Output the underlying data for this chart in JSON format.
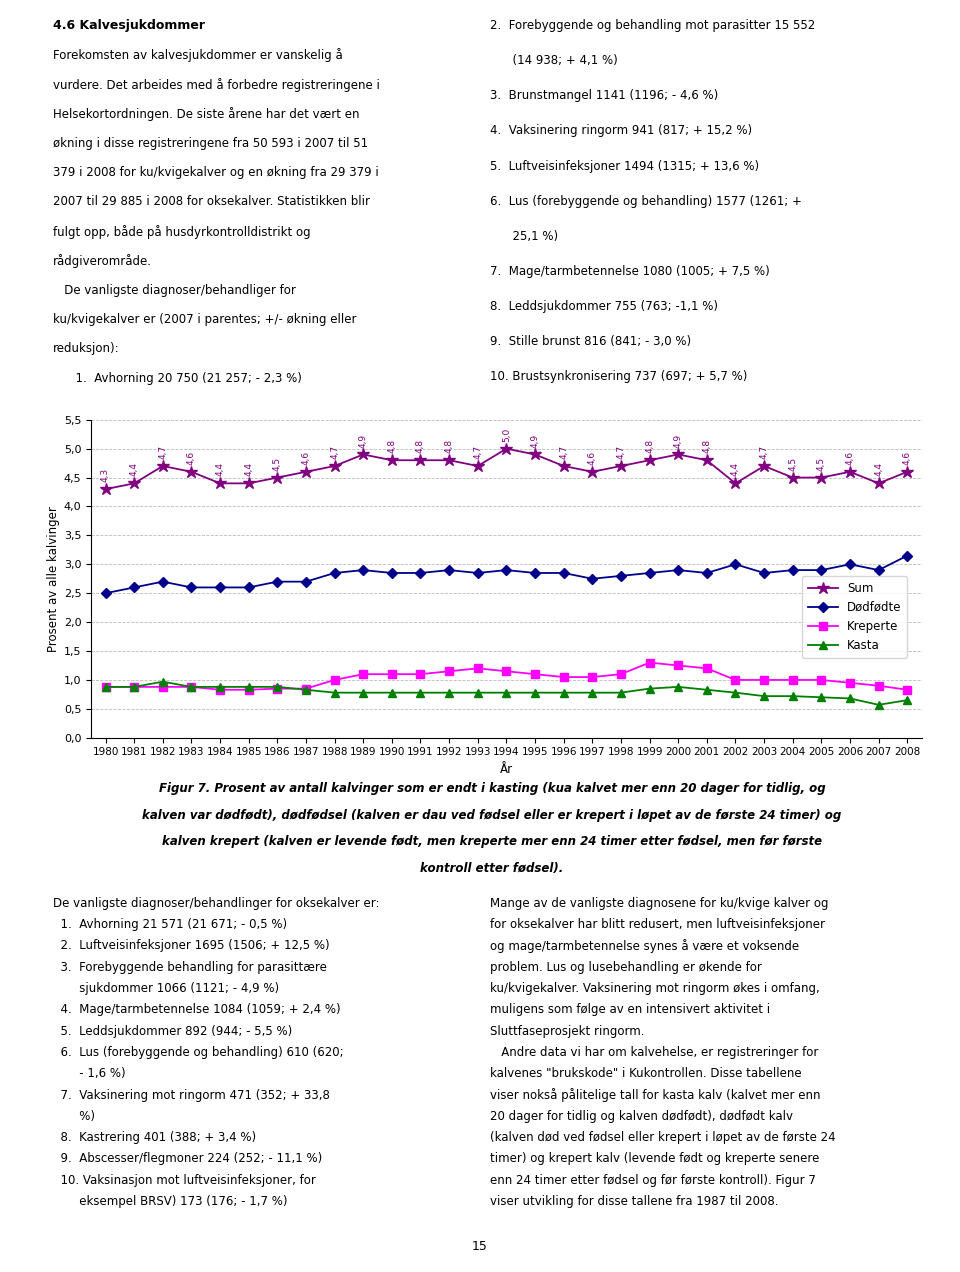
{
  "years": [
    1980,
    1981,
    1982,
    1983,
    1984,
    1985,
    1986,
    1987,
    1988,
    1989,
    1990,
    1991,
    1992,
    1993,
    1994,
    1995,
    1996,
    1997,
    1998,
    1999,
    2000,
    2001,
    2002,
    2003,
    2004,
    2005,
    2006,
    2007,
    2008
  ],
  "sum": [
    4.3,
    4.4,
    4.7,
    4.6,
    4.4,
    4.4,
    4.5,
    4.6,
    4.7,
    4.9,
    4.8,
    4.8,
    4.8,
    4.7,
    5.0,
    4.9,
    4.7,
    4.6,
    4.7,
    4.8,
    4.9,
    4.8,
    4.4,
    4.7,
    4.5,
    4.5,
    4.6,
    4.4,
    4.6
  ],
  "sum_labels": [
    "4,3",
    "4,4",
    "4,7",
    "4,6",
    "4,4",
    "4,4",
    "4,5",
    "4,6",
    "4,7",
    "4,9",
    "4,8",
    "4,8",
    "4,8",
    "4,7",
    "5,0",
    "4,9",
    "4,7",
    "4,6",
    "4,7",
    "4,8",
    "4,9",
    "4,8",
    "4,4",
    "4,7",
    "4,5",
    "4,5",
    "4,6",
    "4,4",
    "4,6"
  ],
  "dodfodde": [
    2.5,
    2.6,
    2.7,
    2.6,
    2.6,
    2.6,
    2.7,
    2.7,
    2.85,
    2.9,
    2.85,
    2.85,
    2.9,
    2.85,
    2.9,
    2.85,
    2.85,
    2.75,
    2.8,
    2.85,
    2.9,
    2.85,
    3.0,
    2.85,
    2.9,
    2.9,
    3.0,
    2.9,
    3.15
  ],
  "kreperte": [
    0.88,
    0.88,
    0.88,
    0.88,
    0.83,
    0.83,
    0.85,
    0.85,
    1.0,
    1.1,
    1.1,
    1.1,
    1.15,
    1.2,
    1.15,
    1.1,
    1.05,
    1.05,
    1.1,
    1.3,
    1.25,
    1.2,
    1.0,
    1.0,
    1.0,
    1.0,
    0.95,
    0.9,
    0.83
  ],
  "kasta": [
    0.88,
    0.88,
    0.97,
    0.88,
    0.88,
    0.88,
    0.88,
    0.83,
    0.78,
    0.78,
    0.78,
    0.78,
    0.78,
    0.78,
    0.78,
    0.78,
    0.78,
    0.78,
    0.78,
    0.85,
    0.88,
    0.83,
    0.78,
    0.72,
    0.72,
    0.7,
    0.68,
    0.57,
    0.65
  ],
  "sum_color": "#800080",
  "dodfodde_color": "#00008b",
  "kreperte_color": "#ff00ff",
  "kasta_color": "#008000",
  "ylabel": "Prosent av alle kalvinger",
  "xlabel": "År",
  "ylim_min": 0.0,
  "ylim_max": 5.5,
  "yticks": [
    0.0,
    0.5,
    1.0,
    1.5,
    2.0,
    2.5,
    3.0,
    3.5,
    4.0,
    4.5,
    5.0,
    5.5
  ],
  "legend_labels": [
    "Sum",
    "Dødfødte",
    "Kreperte",
    "Kasta"
  ],
  "background_color": "#ffffff",
  "grid_color": "#bbbbbb",
  "top_left_text": "4.6 Kalvesjukdommer\nForekomsten av kalvesjukdommer er vanskelig å\nvurdere. Det arbeides med å forbedre registreringene i\nHelsekortordningen. De siste årene har det vært en\nøkning i disse registreringene fra 50 593 i 2007 til 51\n379 i 2008 for ku/kvigekalver og en økning fra 29 379 i\n2007 til 29 885 i 2008 for oksekalver. Statistikken blir\nfulgt opp, både på husdyrkontrolldistrikt og\nrådgiverråde.\n   De vanligste diagnoser/behandliger for\nku/kvigekalver er (2007 i parentes; +/- økning eller\nreduksjon):\n      1.  Avhorning 20 750 (21 257; - 2,3 %)",
  "top_right_text": "2.  Forebyggende og behandling mot parasitter 15 552\n      (14 938; + 4,1 %)\n3.  Brunstmangel 1141 (1196; - 4,6 %)\n4.  Vaksinering ringorm 941 (817; + 15,2 %)\n5.  Luftveisinfeksjoner 1494 (1315; + 13,6 %)\n6.  Lus (forebyggende og behandling) 1577 (1261; +\n      25,1 %)\n7.  Mage/tarmbetennelse 1080 (1005; + 7,5 %)\n8.  Leddsjukdommer 755 (763; -1,1 %)\n9.  Stille brunst 816 (841; - 3,0 %)\n10. Brustsynkronisering 737 (697; + 5,7 %)",
  "fig_caption": "Figur 7. Prosent av antall kalvinger som er endt i kasting (kua kalvet mer enn 20 dager for tidlig, og\nkalven var dødfødt), dødfødsel (kalven er dau ved fødsel eller er krepert i løpet av de første 24 timer) og\nkalven krepert (kalven er levende født, men kreperte mer enn 24 timer etter fødsel, men før første\nkontroll etter fødsel).",
  "bottom_left_text": "De vanligste diagnoser/behandlinger for oksekalver er:\n  1.  Avhorning 21 571 (21 671; - 0,5 %)\n  2.  Luftveisinfeksjoner 1695 (1506; + 12,5 %)\n  3.  Forebyggende behandling for parasittære\n       sjukdommer 1066 (1121; - 4,9 %)\n  4.  Mage/tarmbetennelse 1084 (1059; + 2,4 %)\n  5.  Leddsjukdommer 892 (944; - 5,5 %)\n  6.  Lus (forebyggende og behandling) 610 (620;\n       - 1,6 %)\n  7.  Vaksinering mot ringorm 471 (352; + 33,8\n       %)\n  8.  Kastrering 401 (388; + 3,4 %)\n  9.  Abscesser/flegmoner 224 (252; - 11,1 %)\n  10. Vaksinasjon mot luftveisinfeksjoner, for\n       eksempel BRSV) 173 (176; - 1,7 %)",
  "bottom_right_text": "Mange av de vanligste diagnosene for ku/kvige kalver og\nfor oksekalver har blitt redusert, men luftveisinfeksjoner\nog mage/tarmbetennelse synes å være et voksende\nproblem. Lus og lusebehandling er økende for\nku/kvigekalver. Vaksinering mot ringorm økes i omfang,\nmuligens som følge av en intensivert aktivitet i\nSluttfaseprosjekt ringorm.\n   Andre data vi har om kalvehelse, er registreringer for\nkalvenes “brukskode” i Kukontrollen. Disse tabellene\nviser nokså pålitelige tall for kasta kalv (kalvet mer enn\n20 dager for tidlig og kalven dødfødt), dødfødt kalv\n(kalven død ved fødsel eller krepert i løpet av de første 24\ntimer) og krepert kalv (levende født og kreperte senere\nenn 24 timer etter fødsel og før første kontroll). Figur 7\nviser utvikling for disse tallene fra 1987 til 2008.",
  "page_number": "15"
}
